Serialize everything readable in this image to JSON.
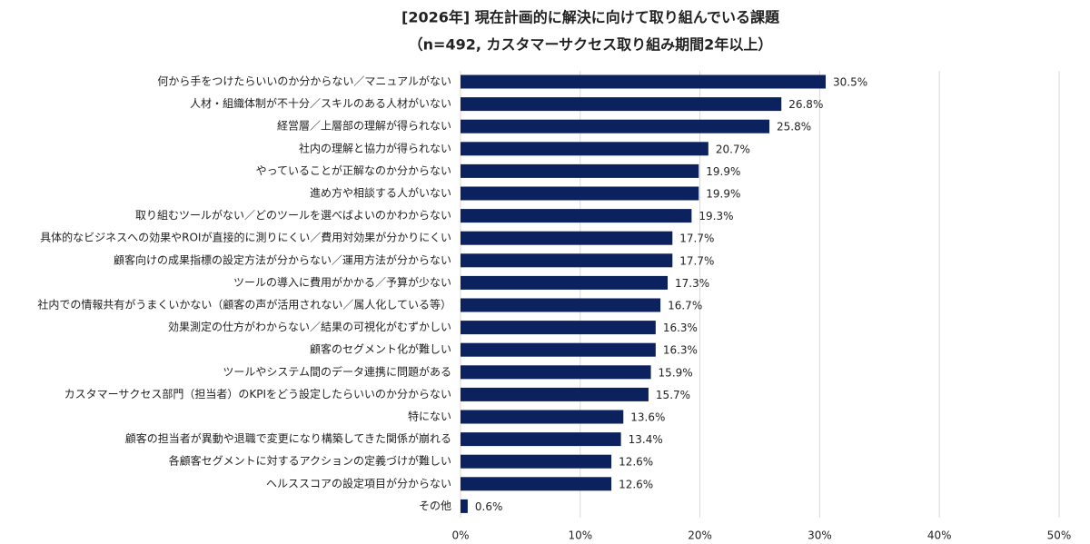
{
  "chart_data": {
    "type": "bar",
    "orientation": "horizontal",
    "title": "[2026年] 現在計画的に解決に向けて取り組んでいる課題",
    "subtitle": "（n=492, カスタマーサクセス取り組み期間2年以上）",
    "categories": [
      "何から手をつけたらいいのか分からない／マニュアルがない",
      "人材・組織体制が不十分／スキルのある人材がいない",
      "経営層／上層部の理解が得られない",
      "社内の理解と協力が得られない",
      "やっていることが正解なのか分からない",
      "進め方や相談する人がいない",
      "取り組むツールがない／どのツールを選べばよいのかわからない",
      "具体的なビジネスへの効果やROIが直接的に測りにくい／費用対効果が分かりにくい",
      "顧客向けの成果指標の設定方法が分からない／運用方法が分からない",
      "ツールの導入に費用がかかる／予算が少ない",
      "社内での情報共有がうまくいかない（顧客の声が活用されない／属人化している等）",
      "効果測定の仕方がわからない／結果の可視化がむずかしい",
      "顧客のセグメント化が難しい",
      "ツールやシステム間のデータ連携に問題がある",
      "カスタマーサクセス部門（担当者）のKPIをどう設定したらいいのか分からない",
      "特にない",
      "顧客の担当者が異動や退職で変更になり構築してきた関係が崩れる",
      "各顧客セグメントに対するアクションの定義づけが難しい",
      "ヘルススコアの設定項目が分からない",
      "その他"
    ],
    "values": [
      30.5,
      26.8,
      25.8,
      20.7,
      19.9,
      19.9,
      19.3,
      17.7,
      17.7,
      17.3,
      16.7,
      16.3,
      16.3,
      15.9,
      15.7,
      13.6,
      13.4,
      12.6,
      12.6,
      0.6
    ],
    "value_labels": [
      "30.5%",
      "26.8%",
      "25.8%",
      "20.7%",
      "19.9%",
      "19.9%",
      "19.3%",
      "17.7%",
      "17.7%",
      "17.3%",
      "16.7%",
      "16.3%",
      "16.3%",
      "15.9%",
      "15.7%",
      "13.6%",
      "13.4%",
      "12.6%",
      "12.6%",
      "0.6%"
    ],
    "color": "#0c225e",
    "xlim": [
      0,
      50
    ],
    "xticks": [
      {
        "value": 0,
        "label": "0%"
      },
      {
        "value": 10,
        "label": "10%"
      },
      {
        "value": 20,
        "label": "20%"
      },
      {
        "value": 30,
        "label": "30%"
      },
      {
        "value": 40,
        "label": "40%"
      },
      {
        "value": 50,
        "label": "50%"
      }
    ],
    "grid": true
  }
}
